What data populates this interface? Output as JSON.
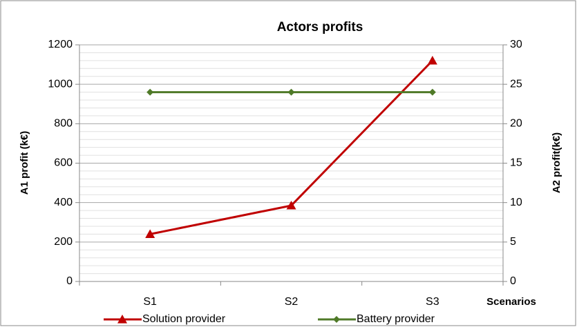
{
  "chart_data": {
    "type": "line",
    "title": "Actors profits",
    "x_label": "Scenarios",
    "y_label": "A1 profit (k€)",
    "y2_label": "A2 profit(k€)",
    "categories": [
      "S1",
      "S2",
      "S3"
    ],
    "series": [
      {
        "name": "Solution provider",
        "color": "#c00000",
        "marker": "triangle",
        "values": [
          240,
          385,
          1120
        ]
      },
      {
        "name": "Battery provider",
        "color": "#4f7a28",
        "marker": "diamond",
        "axis": "y2",
        "values": [
          24,
          24,
          24
        ]
      }
    ],
    "ylim": [
      0,
      1200
    ],
    "yticks": [
      0,
      200,
      400,
      600,
      800,
      1000,
      1200
    ],
    "y2lim": [
      0,
      30
    ],
    "y2ticks": [
      0,
      5,
      10,
      15,
      20,
      25,
      30
    ],
    "grid": true,
    "legend": "bottom"
  }
}
